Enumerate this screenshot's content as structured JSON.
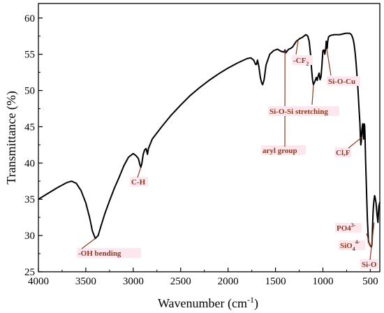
{
  "chart_data": {
    "type": "line",
    "title": "",
    "xlabel": "Wavenumber (cm",
    "xlabel_sup": "-1",
    "xlabel_tail": ")",
    "ylabel": "Transmittance (%)",
    "xlim": [
      4000,
      400
    ],
    "ylim": [
      25,
      62
    ],
    "x_reversed": true,
    "x_ticks": [
      4000,
      3500,
      3000,
      2500,
      2000,
      1500,
      1000,
      500
    ],
    "y_ticks": [
      25,
      30,
      35,
      40,
      45,
      50,
      55,
      60
    ],
    "grid": false,
    "series": [
      {
        "x": [
          4000,
          3900,
          3800,
          3700,
          3650,
          3600,
          3550,
          3500,
          3460,
          3430,
          3400,
          3370,
          3340,
          3300,
          3250,
          3200,
          3150,
          3100,
          3050,
          3000,
          2970,
          2945,
          2930,
          2920,
          2910,
          2895,
          2880,
          2865,
          2855,
          2850,
          2840,
          2800,
          2700,
          2600,
          2500,
          2400,
          2300,
          2200,
          2100,
          2000,
          1900,
          1850,
          1800,
          1760,
          1730,
          1710,
          1700,
          1690,
          1675,
          1660,
          1645,
          1635,
          1620,
          1600,
          1560,
          1520,
          1480,
          1440,
          1410,
          1400,
          1390,
          1375,
          1360,
          1340,
          1320,
          1300,
          1280,
          1260,
          1240,
          1220,
          1200,
          1180,
          1160,
          1145,
          1130,
          1120,
          1110,
          1100,
          1090,
          1080,
          1070,
          1060,
          1050,
          1040,
          1030,
          1020,
          1010,
          1000,
          990,
          980,
          970,
          965,
          960,
          955,
          950,
          940,
          920,
          880,
          820,
          760,
          720,
          700,
          690,
          680,
          670,
          660,
          650,
          640,
          630,
          620,
          610,
          605,
          600,
          595,
          590,
          585,
          580,
          575,
          570,
          565,
          560,
          555,
          550,
          540,
          530,
          520,
          510,
          500,
          495,
          490,
          485,
          480,
          475,
          470,
          465,
          460,
          455,
          450,
          440,
          430,
          420,
          410,
          400
        ],
        "y": [
          35,
          35.8,
          36.6,
          37.3,
          37.5,
          37.2,
          36.2,
          34.5,
          32.5,
          30.6,
          29.6,
          30.0,
          31.3,
          33.0,
          34.8,
          36.5,
          38.0,
          39.6,
          40.8,
          41.3,
          41.0,
          40.6,
          39.8,
          39.4,
          39.9,
          41.2,
          41.8,
          42.0,
          41.5,
          41.2,
          42.0,
          43.3,
          45.0,
          46.6,
          48.0,
          49.3,
          50.4,
          51.4,
          52.3,
          53.1,
          53.8,
          54.1,
          54.4,
          54.5,
          54.2,
          53.6,
          53.6,
          54.2,
          53.3,
          51.8,
          51.0,
          50.8,
          51.5,
          53.5,
          55.0,
          55.5,
          55.7,
          55.4,
          55.3,
          55.6,
          55.2,
          55.5,
          55.7,
          55.8,
          56.0,
          56.4,
          56.8,
          57.0,
          57.2,
          57.3,
          57.5,
          57.7,
          57.5,
          56.8,
          55.0,
          53.0,
          51.5,
          50.8,
          51.1,
          51.4,
          51.8,
          51.4,
          52.0,
          52.4,
          51.5,
          51.9,
          53.5,
          55.5,
          55.6,
          55.0,
          55.8,
          56.8,
          56.3,
          55.8,
          56.7,
          57.4,
          57.6,
          57.7,
          57.7,
          57.9,
          57.9,
          57.7,
          57.4,
          57.0,
          56.3,
          55.2,
          53.8,
          52.0,
          50.0,
          47.7,
          45.5,
          43.6,
          42.5,
          43.0,
          44.5,
          45.0,
          45.4,
          44.0,
          43.3,
          45.4,
          45.2,
          43.5,
          40.5,
          36.0,
          32.0,
          29.3,
          28.8,
          28.6,
          28.5,
          28.4,
          28.6,
          29.5,
          31.8,
          33.5,
          34.4,
          35.0,
          35.5,
          35.3,
          34.5,
          33.0,
          31.8,
          34.0,
          34.6
        ]
      }
    ],
    "annotations": [
      {
        "text": "-OH bending",
        "at": [
          3400,
          29.6
        ]
      },
      {
        "text": "C-H",
        "at": [
          2920,
          39.4
        ]
      },
      {
        "text": "aryl group",
        "at": [
          1400,
          55.6
        ]
      },
      {
        "text": "-CF",
        "sub": "2",
        "at": [
          1260,
          57.0
        ]
      },
      {
        "text": "Si-O-Si stretching",
        "at": [
          1100,
          50.8
        ]
      },
      {
        "text": "Si-O-Cu",
        "at": [
          960,
          55.8
        ]
      },
      {
        "text": "Cl,F",
        "at": [
          585,
          43.6
        ]
      },
      {
        "text": "PO4",
        "sup": "3-",
        "at": [
          500,
          28.5
        ]
      },
      {
        "text": "SiO",
        "sub": "4",
        "sup": "4-",
        "at": [
          500,
          28.5
        ]
      },
      {
        "text": "Si-O",
        "at": [
          460,
          31.8
        ]
      }
    ]
  }
}
